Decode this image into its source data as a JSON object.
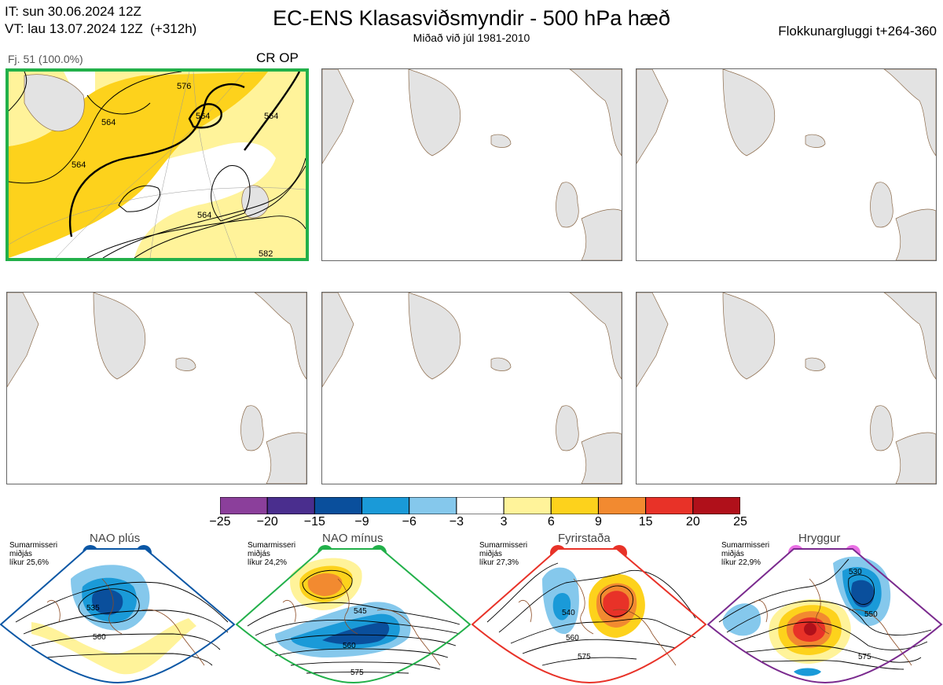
{
  "header": {
    "it_line": "IT: sun 30.06.2024 12Z",
    "vt_line": "VT: lau 13.07.2024 12Z  (+312h)",
    "title": "EC-ENS Klasasviðsmyndir - 500 hPa hæð",
    "subtitle": "Miðað við júl 1981-2010",
    "window": "Flokkunargluggi t+264-360"
  },
  "panels": [
    {
      "label": "Fj. 51 (100.0%)",
      "tag": "CR OP",
      "active": true,
      "contour_labels": [
        "564",
        "564",
        "564",
        "564",
        "564",
        "582",
        "576"
      ]
    },
    {
      "label": "",
      "tag": "",
      "active": false
    },
    {
      "label": "",
      "tag": "",
      "active": false
    },
    {
      "label": "",
      "tag": "",
      "active": false
    },
    {
      "label": "",
      "tag": "",
      "active": false
    },
    {
      "label": "",
      "tag": "",
      "active": false
    }
  ],
  "colorbar": {
    "ticks": [
      "−25",
      "−20",
      "−15",
      "−9",
      "−6",
      "−3",
      "3",
      "6",
      "9",
      "15",
      "20",
      "25"
    ],
    "colors": [
      "#8b3f9b",
      "#4a2e8e",
      "#0a4f9c",
      "#1a9ad8",
      "#85c8ec",
      "#ffffff",
      "#fff39a",
      "#fdd21c",
      "#f28a30",
      "#e83228",
      "#b0101a"
    ]
  },
  "regimes": [
    {
      "title": "NAO plús",
      "season": "Sumarmisseri",
      "kind": "miðjás",
      "prob": "líkur 25,6%",
      "color": "#0b57a5",
      "labels": [
        "535",
        "560"
      ]
    },
    {
      "title": "NAO mínus",
      "season": "Sumarmisseri",
      "kind": "miðjás",
      "prob": "líkur 24,2%",
      "color": "#22b04a",
      "labels": [
        "545",
        "560",
        "575"
      ]
    },
    {
      "title": "Fyrirstaða",
      "season": "Sumarmisseri",
      "kind": "miðjás",
      "prob": "líkur 27,3%",
      "color": "#e83228",
      "labels": [
        "540",
        "560",
        "575"
      ]
    },
    {
      "title": "Hryggur",
      "season": "Sumarmisseri",
      "kind": "miðjás",
      "prob": "líkur 22,9%",
      "color": "#e970e4",
      "labels": [
        "530",
        "550",
        "575"
      ]
    }
  ]
}
